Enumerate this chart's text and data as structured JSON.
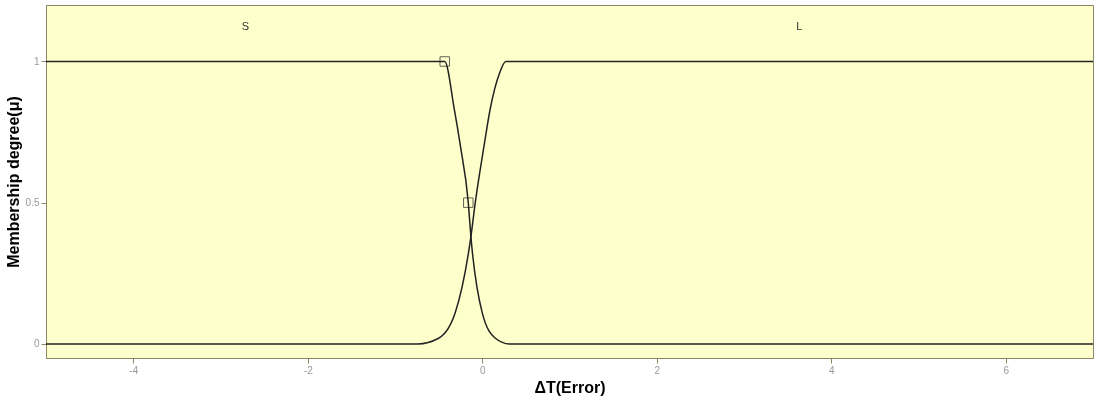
{
  "chart_data": {
    "type": "line",
    "xlabel": "ΔT(Error)",
    "ylabel": "Membership degree(μ)",
    "xlim": [
      -5,
      7
    ],
    "ylim": [
      -0.05,
      1.2
    ],
    "xticks": [
      -4,
      -2,
      0,
      2,
      4,
      6
    ],
    "yticks": [
      0,
      0.5,
      1
    ],
    "grid": false,
    "marker": "none",
    "line_style": "solid",
    "annotations": [
      "S",
      "L"
    ],
    "series": [
      {
        "color": "#222222",
        "x": [
          -5,
          -0.43,
          -0.32,
          -0.25,
          -0.16,
          -0.13,
          0,
          0.15,
          0.31,
          7
        ],
        "values": [
          1,
          1,
          0.83,
          0.7,
          0.5,
          0.38,
          0.11,
          0.02,
          0,
          0
        ]
      },
      {
        "color": "#222222",
        "x": [
          -5,
          -0.74,
          -0.5,
          -0.31,
          -0.13,
          -0.08,
          0.02,
          0.09,
          0.2,
          0.27,
          7
        ],
        "values": [
          0,
          0,
          0.02,
          0.11,
          0.38,
          0.5,
          0.7,
          0.83,
          0.96,
          1,
          1
        ]
      },
      {
        "type": "scatter",
        "marker": "square",
        "color": "#222222",
        "x": [
          -0.43,
          -0.16
        ],
        "values": [
          1,
          0.5
        ]
      }
    ]
  }
}
